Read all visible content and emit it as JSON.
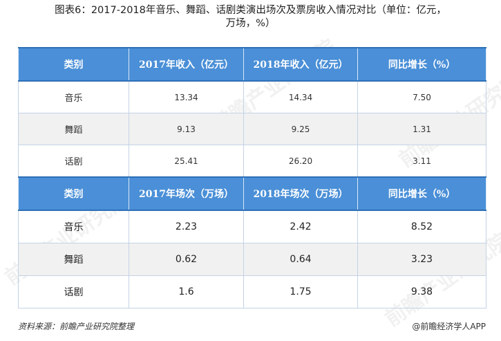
{
  "title": {
    "line1": "图表6：2017-2018年音乐、舞蹈、话剧类演出场次及票房收入情况对比（单位：亿元，",
    "line2": "万场，%）"
  },
  "table1": {
    "headers": [
      "类别",
      "2017年收入（亿元）",
      "2018年收入（亿元）",
      "同比增长（%）"
    ],
    "rows": [
      [
        "音乐",
        "13.34",
        "14.34",
        "7.50"
      ],
      [
        "舞蹈",
        "9.13",
        "9.25",
        "1.31"
      ],
      [
        "话剧",
        "25.41",
        "26.20",
        "3.11"
      ]
    ]
  },
  "table2": {
    "headers": [
      "类别",
      "2017年场次（万场）",
      "2018年场次（万场）",
      "同比增长（%）"
    ],
    "rows": [
      [
        "音乐",
        "2.23",
        "2.42",
        "8.52"
      ],
      [
        "舞蹈",
        "0.62",
        "0.64",
        "3.23"
      ],
      [
        "话剧",
        "1.6",
        "1.75",
        "9.38"
      ]
    ]
  },
  "footer": {
    "source": "资料来源：前瞻产业研究院整理",
    "brand": "@前瞻经济学人APP"
  },
  "watermark": "前瞻产业研究院",
  "colors": {
    "header_bg": "#4a8fd7",
    "header_border": "#2d6fb6",
    "zebra": "#f1f1f1"
  }
}
